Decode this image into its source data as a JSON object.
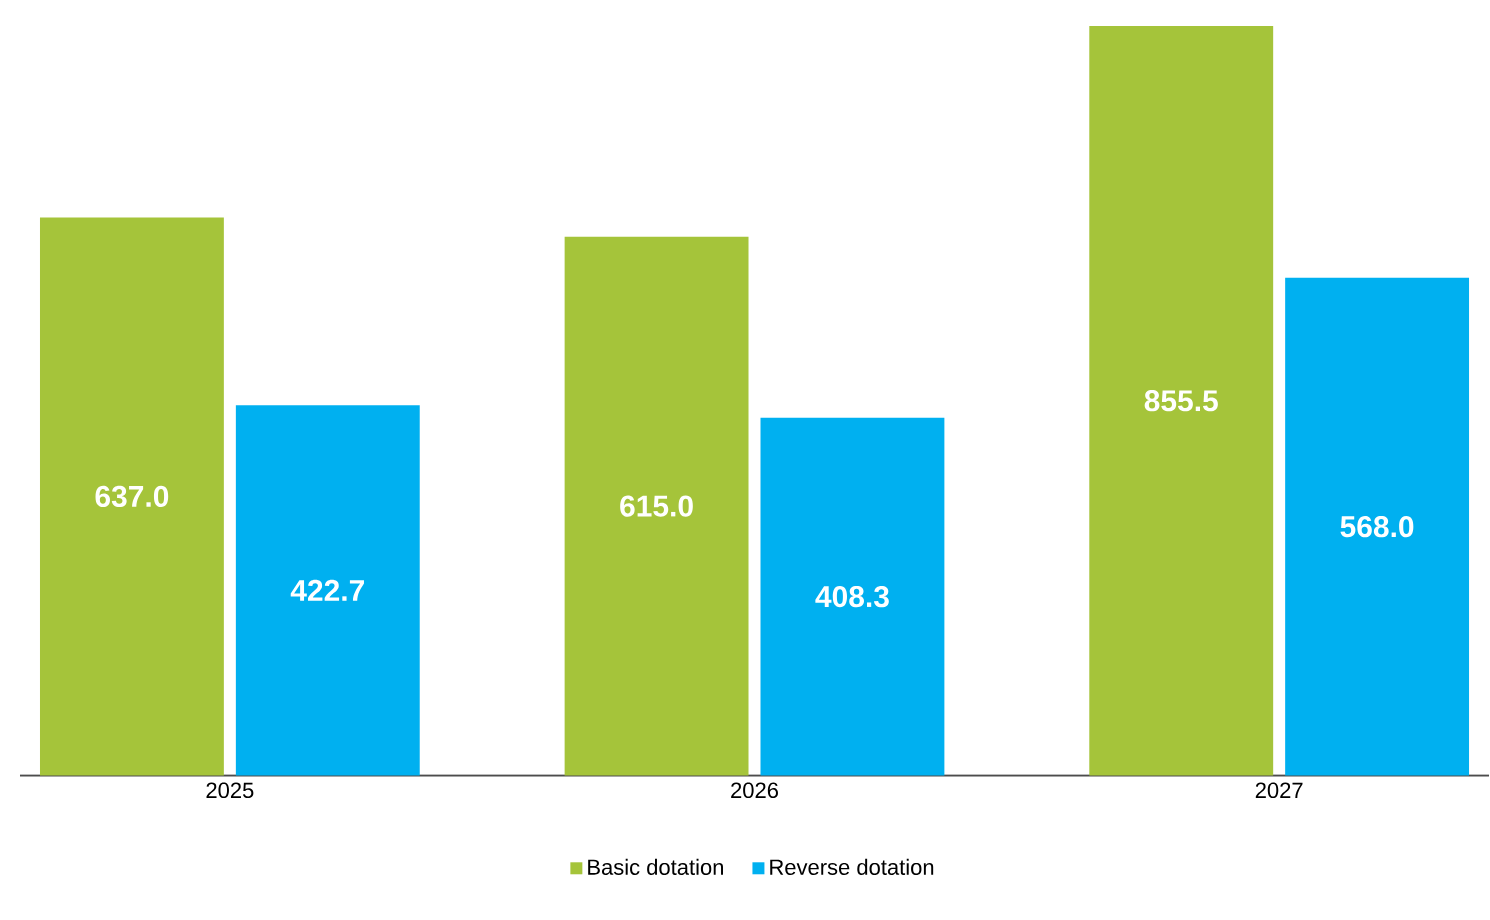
{
  "chart_data": {
    "type": "bar",
    "categories": [
      "2025",
      "2026",
      "2027"
    ],
    "series": [
      {
        "name": "Basic dotation",
        "color": "#a5c43a",
        "values": [
          637.0,
          615.0,
          855.5
        ],
        "value_labels": [
          "637.0",
          "615.0",
          "855.5"
        ]
      },
      {
        "name": "Reverse dotation",
        "color": "#00b0f0",
        "values": [
          422.7,
          408.3,
          568.0
        ],
        "value_labels": [
          "422.7",
          "408.3",
          "568.0"
        ]
      }
    ],
    "legend": "bottom"
  }
}
